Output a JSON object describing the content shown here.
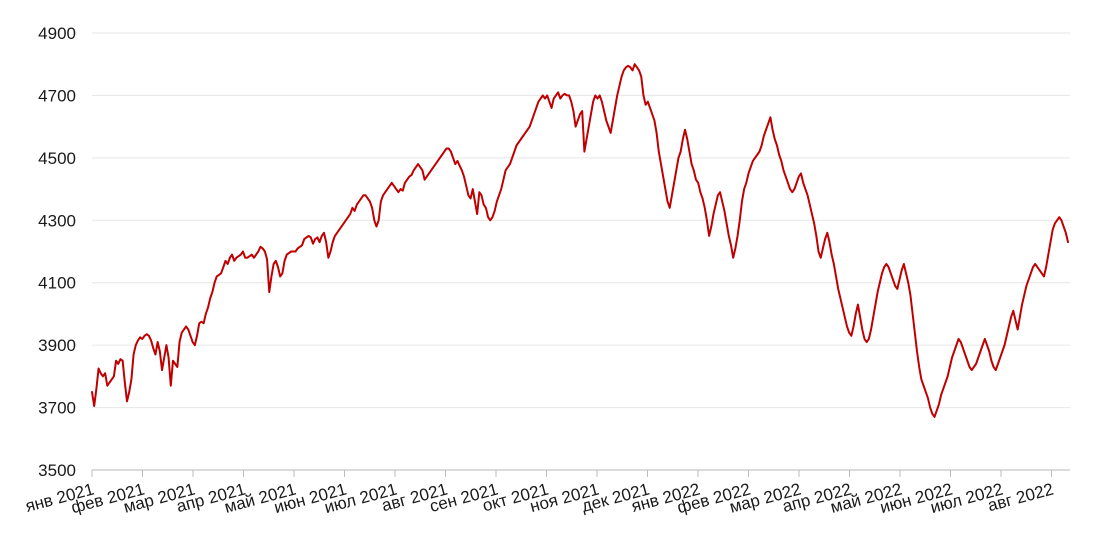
{
  "colors": {
    "line": "#c00000",
    "grid": "#e6e6e6",
    "axis": "#cfcfcf",
    "text": "#1a1a1a"
  },
  "chart_data": {
    "type": "line",
    "title": "",
    "xlabel": "",
    "ylabel": "",
    "grid": "horizontal",
    "legend": "none",
    "ylim": [
      3500,
      4900
    ],
    "y_ticks": [
      3500,
      3700,
      3900,
      4100,
      4300,
      4500,
      4700,
      4900
    ],
    "x_ticks": [
      "янв 2021",
      "фев 2021",
      "мар 2021",
      "апр 2021",
      "май 2021",
      "июн 2021",
      "июл 2021",
      "авг 2021",
      "сен 2021",
      "окт 2021",
      "ноя 2021",
      "дек 2021",
      "янв 2022",
      "фев 2022",
      "мар 2022",
      "апр 2022",
      "май 2022",
      "июн 2022",
      "июл 2022",
      "авг 2022"
    ],
    "series": [
      {
        "values": [
          3750,
          3705,
          3760,
          3825,
          3810,
          3800,
          3810,
          3770,
          3780,
          3790,
          3800,
          3850,
          3840,
          3855,
          3850,
          3780,
          3720,
          3750,
          3790,
          3870,
          3900,
          3915,
          3925,
          3920,
          3930,
          3935,
          3930,
          3915,
          3890,
          3870,
          3910,
          3880,
          3820,
          3860,
          3900,
          3860,
          3770,
          3850,
          3840,
          3830,
          3910,
          3940,
          3950,
          3960,
          3950,
          3930,
          3910,
          3900,
          3930,
          3970,
          3975,
          3970,
          4000,
          4020,
          4050,
          4070,
          4100,
          4120,
          4125,
          4130,
          4150,
          4170,
          4160,
          4180,
          4190,
          4170,
          4180,
          4185,
          4190,
          4200,
          4180,
          4180,
          4185,
          4190,
          4180,
          4190,
          4200,
          4215,
          4210,
          4200,
          4175,
          4070,
          4120,
          4160,
          4170,
          4150,
          4120,
          4130,
          4170,
          4190,
          4195,
          4200,
          4200,
          4200,
          4210,
          4215,
          4220,
          4240,
          4245,
          4250,
          4245,
          4225,
          4240,
          4245,
          4230,
          4250,
          4260,
          4230,
          4180,
          4200,
          4230,
          4250,
          4260,
          4270,
          4280,
          4290,
          4300,
          4310,
          4320,
          4340,
          4330,
          4350,
          4360,
          4370,
          4380,
          4380,
          4370,
          4360,
          4340,
          4300,
          4280,
          4300,
          4360,
          4380,
          4390,
          4400,
          4410,
          4420,
          4410,
          4400,
          4390,
          4400,
          4395,
          4420,
          4430,
          4440,
          4445,
          4460,
          4470,
          4480,
          4470,
          4460,
          4430,
          4440,
          4450,
          4460,
          4470,
          4480,
          4490,
          4500,
          4510,
          4520,
          4530,
          4530,
          4520,
          4500,
          4480,
          4490,
          4475,
          4460,
          4440,
          4410,
          4380,
          4370,
          4400,
          4360,
          4320,
          4390,
          4380,
          4350,
          4340,
          4310,
          4300,
          4310,
          4330,
          4360,
          4380,
          4400,
          4430,
          4460,
          4470,
          4480,
          4500,
          4520,
          4540,
          4550,
          4560,
          4570,
          4580,
          4590,
          4600,
          4620,
          4640,
          4660,
          4680,
          4690,
          4700,
          4690,
          4700,
          4680,
          4660,
          4690,
          4700,
          4710,
          4690,
          4700,
          4705,
          4700,
          4700,
          4680,
          4650,
          4600,
          4620,
          4640,
          4650,
          4520,
          4560,
          4600,
          4640,
          4680,
          4700,
          4690,
          4700,
          4680,
          4650,
          4620,
          4600,
          4580,
          4620,
          4660,
          4700,
          4730,
          4760,
          4780,
          4790,
          4795,
          4790,
          4780,
          4800,
          4790,
          4780,
          4760,
          4700,
          4670,
          4680,
          4660,
          4640,
          4620,
          4580,
          4520,
          4480,
          4440,
          4400,
          4360,
          4340,
          4380,
          4420,
          4460,
          4500,
          4520,
          4560,
          4590,
          4560,
          4520,
          4480,
          4460,
          4430,
          4420,
          4390,
          4370,
          4340,
          4300,
          4250,
          4280,
          4320,
          4350,
          4380,
          4390,
          4360,
          4330,
          4290,
          4250,
          4220,
          4180,
          4210,
          4250,
          4300,
          4360,
          4400,
          4420,
          4450,
          4470,
          4490,
          4500,
          4510,
          4520,
          4540,
          4570,
          4590,
          4610,
          4630,
          4590,
          4560,
          4540,
          4510,
          4490,
          4460,
          4440,
          4420,
          4400,
          4390,
          4400,
          4420,
          4440,
          4450,
          4420,
          4400,
          4380,
          4350,
          4320,
          4290,
          4250,
          4200,
          4180,
          4210,
          4240,
          4260,
          4230,
          4190,
          4160,
          4120,
          4080,
          4050,
          4020,
          3990,
          3960,
          3940,
          3930,
          3960,
          4000,
          4030,
          3990,
          3950,
          3920,
          3910,
          3920,
          3950,
          3990,
          4030,
          4070,
          4100,
          4130,
          4150,
          4160,
          4150,
          4130,
          4110,
          4090,
          4080,
          4110,
          4140,
          4160,
          4130,
          4100,
          4060,
          4000,
          3940,
          3880,
          3830,
          3790,
          3770,
          3750,
          3730,
          3700,
          3680,
          3670,
          3690,
          3710,
          3740,
          3760,
          3780,
          3800,
          3830,
          3860,
          3880,
          3900,
          3920,
          3910,
          3890,
          3870,
          3850,
          3830,
          3820,
          3830,
          3840,
          3860,
          3880,
          3900,
          3920,
          3900,
          3880,
          3850,
          3830,
          3820,
          3840,
          3860,
          3880,
          3900,
          3930,
          3960,
          3990,
          4010,
          3980,
          3950,
          3990,
          4030,
          4060,
          4090,
          4110,
          4130,
          4150,
          4160,
          4150,
          4140,
          4130,
          4120,
          4150,
          4190,
          4230,
          4270,
          4290,
          4300,
          4310,
          4300,
          4280,
          4260,
          4230
        ]
      }
    ]
  }
}
